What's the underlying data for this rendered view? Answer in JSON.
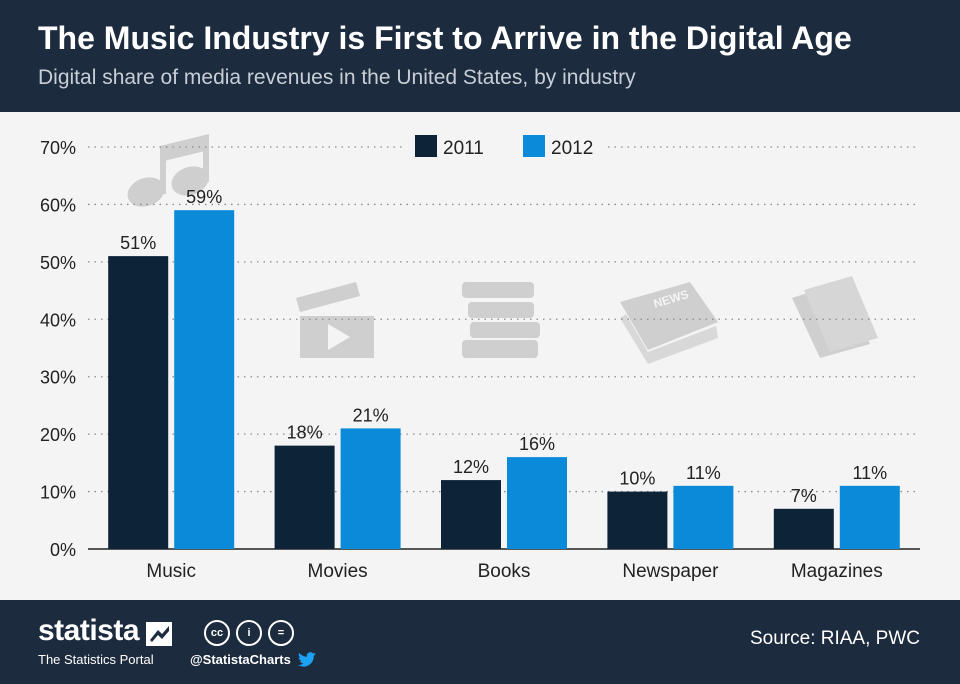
{
  "header": {
    "title": "The Music Industry is First to Arrive in the Digital Age",
    "subtitle": "Digital share of media revenues in the United States, by industry"
  },
  "chart_data": {
    "type": "bar",
    "title": "The Music Industry is First to Arrive in the Digital Age",
    "subtitle": "Digital share of media revenues in the United States, by industry",
    "categories": [
      "Music",
      "Movies",
      "Books",
      "Newspaper",
      "Magazines"
    ],
    "series": [
      {
        "name": "2011",
        "values": [
          51,
          18,
          12,
          10,
          7
        ],
        "color": "#0d2338"
      },
      {
        "name": "2012",
        "values": [
          59,
          21,
          16,
          11,
          11
        ],
        "color": "#0a8ad8"
      }
    ],
    "ylim": [
      0,
      70
    ],
    "yticks": [
      "0%",
      "10%",
      "20%",
      "30%",
      "40%",
      "50%",
      "60%",
      "70%"
    ],
    "value_labels": [
      [
        "51%",
        "18%",
        "12%",
        "10%",
        "7%"
      ],
      [
        "59%",
        "21%",
        "16%",
        "11%",
        "11%"
      ]
    ],
    "icons": [
      "music-note-icon",
      "film-clapper-icon",
      "books-icon",
      "newspaper-icon",
      "magazines-icon"
    ],
    "newspaper_icon_text": "NEWS",
    "legend_position": "top-center",
    "grid": true
  },
  "footer": {
    "brand": "statista",
    "brand_sub": "The Statistics Portal",
    "handle": "@StatistaCharts",
    "source": "Source: RIAA, PWC",
    "cc_icons": [
      "cc",
      "i",
      "="
    ]
  },
  "colors": {
    "header_bg": "#1c2b3e",
    "chart_bg": "#f4f4f4",
    "series_2011": "#0d2338",
    "series_2012": "#0a8ad8",
    "icon_gray": "#cfcfcf"
  }
}
